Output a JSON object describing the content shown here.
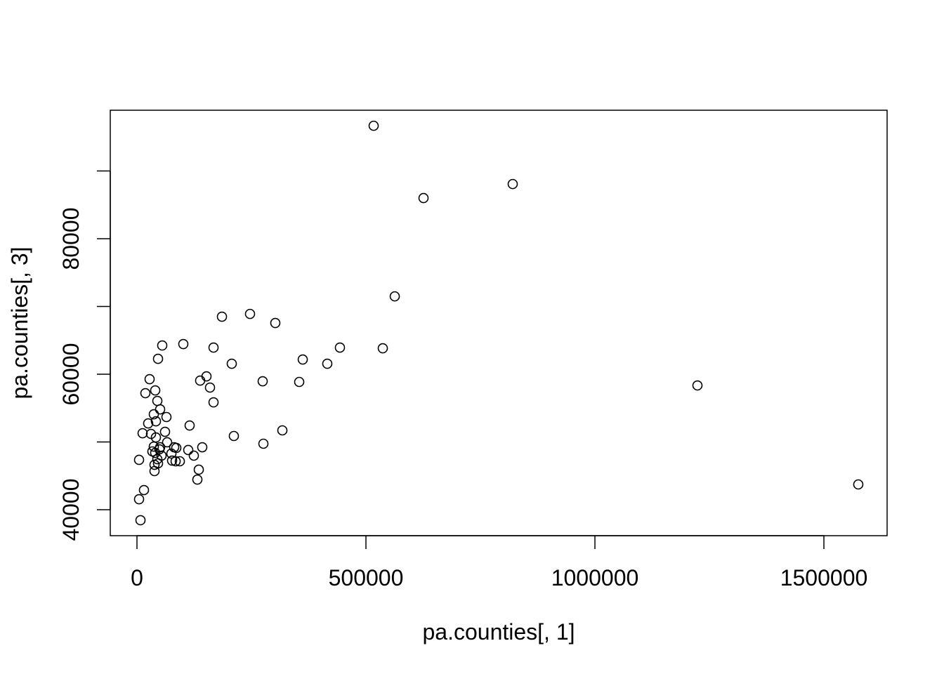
{
  "chart_data": {
    "type": "scatter",
    "title": "",
    "xlabel": "pa.counties[, 1]",
    "ylabel": "pa.counties[, 3]",
    "xlim": [
      -58282,
      1638037
    ],
    "ylim": [
      36166,
      98964
    ],
    "xticks": [
      0,
      500000,
      1000000,
      1500000
    ],
    "xtick_labels": [
      "0",
      "500000",
      "1000000",
      "1500000"
    ],
    "yticks": [
      40000,
      50000,
      60000,
      70000,
      80000,
      90000
    ],
    "ytick_labels": [
      "40000",
      "",
      "60000",
      "",
      "80000",
      ""
    ],
    "grid": false,
    "marker": "open-circle",
    "color": "#000000",
    "points": [
      [
        516860,
        96670
      ],
      [
        625750,
        86000
      ],
      [
        820500,
        88070
      ],
      [
        1223900,
        58340
      ],
      [
        1575100,
        43730
      ],
      [
        562900,
        71490
      ],
      [
        185600,
        68490
      ],
      [
        246900,
        68900
      ],
      [
        302100,
        67560
      ],
      [
        443200,
        63930
      ],
      [
        536800,
        63830
      ],
      [
        362000,
        62170
      ],
      [
        415600,
        61550
      ],
      [
        354300,
        58860
      ],
      [
        274500,
        58960
      ],
      [
        207000,
        61550
      ],
      [
        317500,
        51710
      ],
      [
        211600,
        50880
      ],
      [
        276100,
        49740
      ],
      [
        55200,
        64240
      ],
      [
        101200,
        64450
      ],
      [
        167200,
        63930
      ],
      [
        46000,
        62270
      ],
      [
        138000,
        59060
      ],
      [
        151800,
        59680
      ],
      [
        159500,
        58030
      ],
      [
        167200,
        55850
      ],
      [
        27600,
        59270
      ],
      [
        18400,
        57200
      ],
      [
        39900,
        57610
      ],
      [
        44500,
        56060
      ],
      [
        50600,
        54810
      ],
      [
        36800,
        54090
      ],
      [
        64400,
        53680
      ],
      [
        24500,
        52740
      ],
      [
        41400,
        53050
      ],
      [
        115000,
        52430
      ],
      [
        12300,
        51290
      ],
      [
        30700,
        51190
      ],
      [
        61300,
        51500
      ],
      [
        41400,
        50670
      ],
      [
        65900,
        49950
      ],
      [
        36800,
        49320
      ],
      [
        142600,
        49220
      ],
      [
        112000,
        48810
      ],
      [
        85900,
        49120
      ],
      [
        124200,
        47980
      ],
      [
        75200,
        48290
      ],
      [
        53700,
        47980
      ],
      [
        39900,
        48390
      ],
      [
        49100,
        48910
      ],
      [
        4600,
        47360
      ],
      [
        84400,
        47150
      ],
      [
        93600,
        47150
      ],
      [
        76700,
        47250
      ],
      [
        38300,
        46630
      ],
      [
        46000,
        46840
      ],
      [
        38300,
        45700
      ],
      [
        135000,
        45910
      ],
      [
        131900,
        44450
      ],
      [
        15300,
        42900
      ],
      [
        4600,
        41550
      ],
      [
        7700,
        38450
      ],
      [
        50600,
        49220
      ],
      [
        33700,
        48600
      ],
      [
        44500,
        47460
      ],
      [
        81300,
        49220
      ]
    ]
  }
}
